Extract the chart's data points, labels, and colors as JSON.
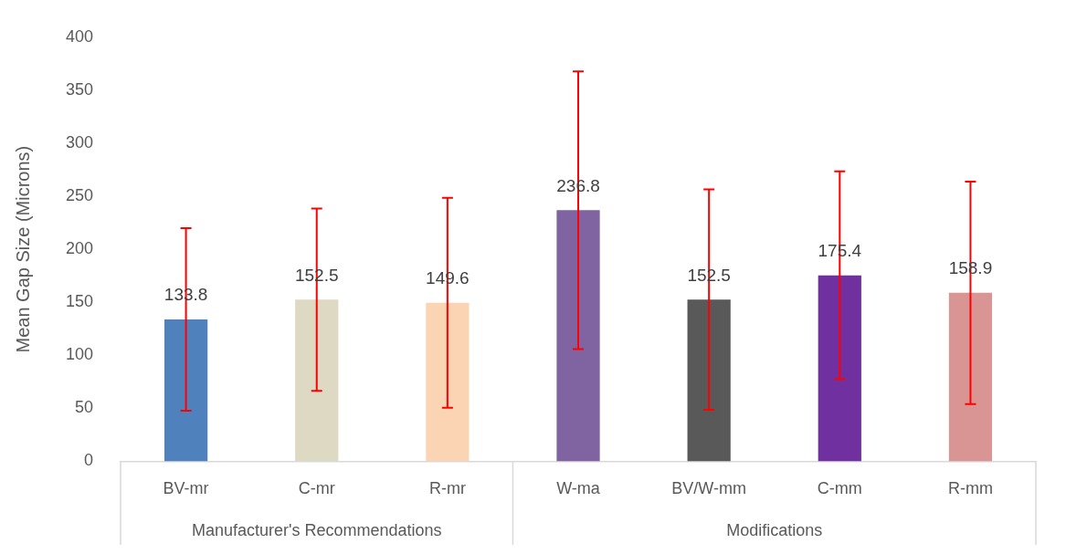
{
  "chart_data": {
    "type": "bar",
    "ylabel": "Mean Gap Size (Microns)",
    "categories": [
      "BV-mr",
      "C-mr",
      "R-mr",
      "W-ma",
      "BV/W-mm",
      "C-mm",
      "R-mm"
    ],
    "values": [
      133.8,
      152.5,
      149.6,
      236.8,
      152.5,
      175.4,
      158.9
    ],
    "colors": [
      "#4f81bd",
      "#ddd9c3",
      "#fbd4b4",
      "#8064a2",
      "#595959",
      "#7030a0",
      "#d99594"
    ],
    "errors": [
      86,
      86,
      99,
      131,
      104,
      98,
      105
    ],
    "data_labels": true,
    "ylim": [
      0,
      400
    ],
    "yticks": [
      0,
      50,
      100,
      150,
      200,
      250,
      300,
      350,
      400
    ],
    "grid": false,
    "legend": false,
    "annotations": [
      "Manufacturer's Recommendations",
      "Modifications"
    ]
  }
}
